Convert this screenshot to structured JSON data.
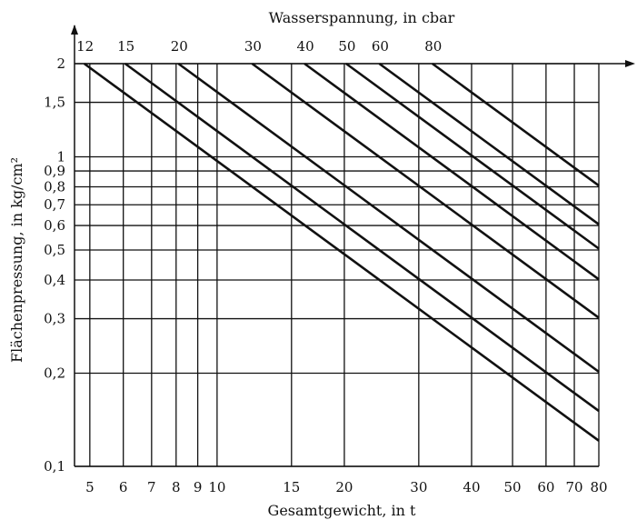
{
  "chart_data": {
    "type": "line",
    "title": "",
    "xlabel": "Gesamtgewicht, in t",
    "ylabel": "Flächenpressung, in kg/cm²",
    "x2label": "Wasserspannung, in cbar",
    "xscale": "log",
    "yscale": "log",
    "xlim": [
      4.6,
      80
    ],
    "ylim": [
      0.1,
      2
    ],
    "grid": true,
    "x_ticks": [
      5,
      6,
      7,
      8,
      9,
      10,
      15,
      20,
      30,
      40,
      50,
      60,
      70,
      80
    ],
    "x_tick_labels": [
      "5",
      "6",
      "7",
      "8",
      "9",
      "10",
      "15",
      "20",
      "30",
      "40",
      "50",
      "60",
      "70",
      "80"
    ],
    "y_ticks": [
      0.1,
      0.2,
      0.3,
      0.4,
      0.5,
      0.6,
      0.7,
      0.8,
      0.9,
      1,
      1.5,
      2
    ],
    "y_tick_labels": [
      "0,1",
      "0,2",
      "0,3",
      "0,4",
      "0,5",
      "0,6",
      "0,7",
      "0,8",
      "0,9",
      "1",
      "1,5",
      "2"
    ],
    "top_tick_labels": [
      "12",
      "15",
      "20",
      "30",
      "40",
      "50",
      "60",
      "80"
    ],
    "series": [
      {
        "label": "12",
        "x": [
          4.85,
          80
        ],
        "y": [
          2,
          0.121
        ]
      },
      {
        "label": "15",
        "x": [
          6.06,
          80
        ],
        "y": [
          2,
          0.151
        ]
      },
      {
        "label": "20",
        "x": [
          8.1,
          80
        ],
        "y": [
          2,
          0.202
        ]
      },
      {
        "label": "30",
        "x": [
          12.1,
          80
        ],
        "y": [
          2,
          0.302
        ]
      },
      {
        "label": "40",
        "x": [
          16.1,
          80
        ],
        "y": [
          2,
          0.402
        ]
      },
      {
        "label": "50",
        "x": [
          20.2,
          80
        ],
        "y": [
          2,
          0.505
        ]
      },
      {
        "label": "60",
        "x": [
          24.2,
          80
        ],
        "y": [
          2,
          0.605
        ]
      },
      {
        "label": "80",
        "x": [
          32.3,
          80
        ],
        "y": [
          2,
          0.807
        ]
      }
    ]
  }
}
